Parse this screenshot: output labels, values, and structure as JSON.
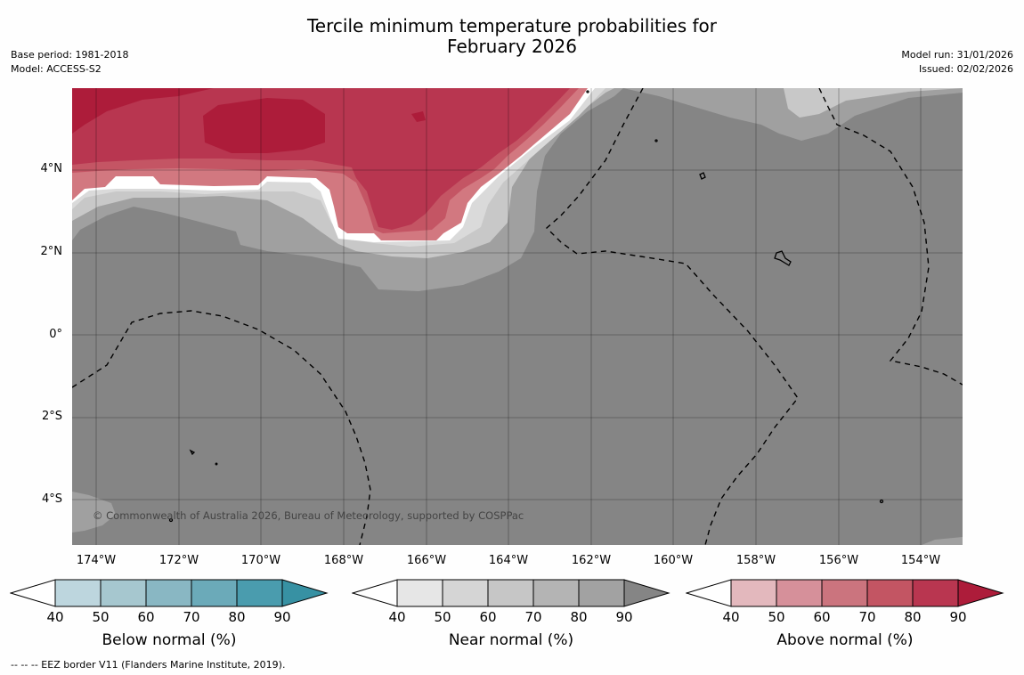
{
  "title": {
    "line1": "Tercile minimum temperature probabilities for",
    "line2": "February 2026"
  },
  "meta_left": {
    "base_period": "Base period: 1981-2018",
    "model": "Model: ACCESS-S2"
  },
  "meta_right": {
    "model_run": "Model run: 31/01/2026",
    "issued": "Issued: 02/02/2026"
  },
  "map": {
    "lat_labels": [
      "4°N",
      "2°N",
      "0°",
      "2°S",
      "4°S"
    ],
    "lon_labels": [
      "174°W",
      "172°W",
      "170°W",
      "168°W",
      "166°W",
      "164°W",
      "162°W",
      "160°W",
      "158°W",
      "156°W",
      "154°W"
    ],
    "copyright": "© Commonwealth of Australia 2026, Bureau of Meteorology, supported by COSPPac",
    "colors": {
      "background_grey": "#858585",
      "near_90": "#a0a0a0",
      "near_70": "#c8c8c8",
      "near_50": "#dadada",
      "above_60": "#d27880",
      "above_70": "#c45564",
      "above_80": "#b83650",
      "above_90": "#ad1c3a"
    }
  },
  "colorbars": [
    {
      "title": "Below normal (%)",
      "ticks": [
        "40",
        "50",
        "60",
        "70",
        "80",
        "90"
      ],
      "colors": [
        "#bdd6de",
        "#a6c7cf",
        "#89b7c3",
        "#6baab9",
        "#4a9cae",
        "#3791a3"
      ]
    },
    {
      "title": "Near normal (%)",
      "ticks": [
        "40",
        "50",
        "60",
        "70",
        "80",
        "90"
      ],
      "colors": [
        "#e6e6e6",
        "#d5d5d5",
        "#c6c6c6",
        "#b4b4b4",
        "#a2a2a2",
        "#858585"
      ]
    },
    {
      "title": "Above normal (%)",
      "ticks": [
        "40",
        "50",
        "60",
        "70",
        "80",
        "90"
      ],
      "colors": [
        "#e3b8bd",
        "#d6909a",
        "#cb747e",
        "#c35563",
        "#b93650",
        "#ad1c3a"
      ]
    }
  ],
  "footnote": "--  --  -- EEZ border V11 (Flanders Marine Institute, 2019)."
}
